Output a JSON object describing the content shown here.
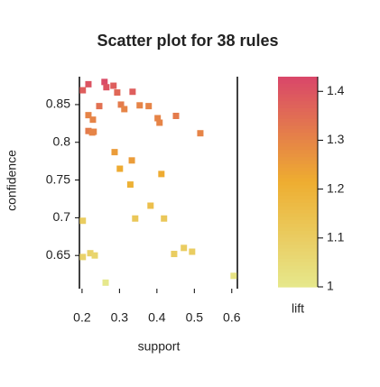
{
  "chart_data": {
    "type": "scatter",
    "title": "Scatter plot for 38 rules",
    "x_label": "support",
    "y_label": "confidence",
    "colorbar_label": "lift",
    "x": [
      0.202,
      0.217,
      0.26,
      0.265,
      0.284,
      0.335,
      0.294,
      0.304,
      0.313,
      0.354,
      0.378,
      0.402,
      0.407,
      0.451,
      0.229,
      0.217,
      0.217,
      0.227,
      0.231,
      0.516,
      0.287,
      0.333,
      0.301,
      0.412,
      0.329,
      0.383,
      0.342,
      0.419,
      0.202,
      0.446,
      0.472,
      0.494,
      0.222,
      0.234,
      0.202,
      0.263,
      0.605,
      0.246
    ],
    "values": [
      0.869,
      0.877,
      0.88,
      0.873,
      0.875,
      0.867,
      0.866,
      0.85,
      0.844,
      0.849,
      0.848,
      0.832,
      0.826,
      0.835,
      0.83,
      0.836,
      0.815,
      0.813,
      0.814,
      0.812,
      0.787,
      0.776,
      0.765,
      0.758,
      0.744,
      0.716,
      0.699,
      0.699,
      0.696,
      0.652,
      0.66,
      0.655,
      0.653,
      0.65,
      0.648,
      0.614,
      0.623,
      0.848
    ],
    "lift": [
      1.38,
      1.4,
      1.42,
      1.4,
      1.38,
      1.38,
      1.36,
      1.32,
      1.3,
      1.3,
      1.3,
      1.3,
      1.3,
      1.32,
      1.3,
      1.3,
      1.32,
      1.3,
      1.3,
      1.3,
      1.25,
      1.25,
      1.22,
      1.22,
      1.2,
      1.15,
      1.12,
      1.12,
      1.1,
      1.1,
      1.1,
      1.1,
      1.08,
      1.07,
      1.08,
      1.0,
      1.02,
      1.34
    ],
    "xlim": [
      0.193,
      0.615
    ],
    "ylim": [
      0.606,
      0.887
    ],
    "zlim": [
      1,
      1.43
    ],
    "xticks": [
      0.2,
      0.3,
      0.4,
      0.5,
      0.6
    ],
    "yticks": [
      0.65,
      0.7,
      0.75,
      0.8,
      0.85
    ],
    "zticks": [
      1,
      1.1,
      1.2,
      1.3,
      1.4
    ],
    "color_scale": [
      "#e6e88c",
      "#eead30",
      "#d9466a"
    ]
  }
}
